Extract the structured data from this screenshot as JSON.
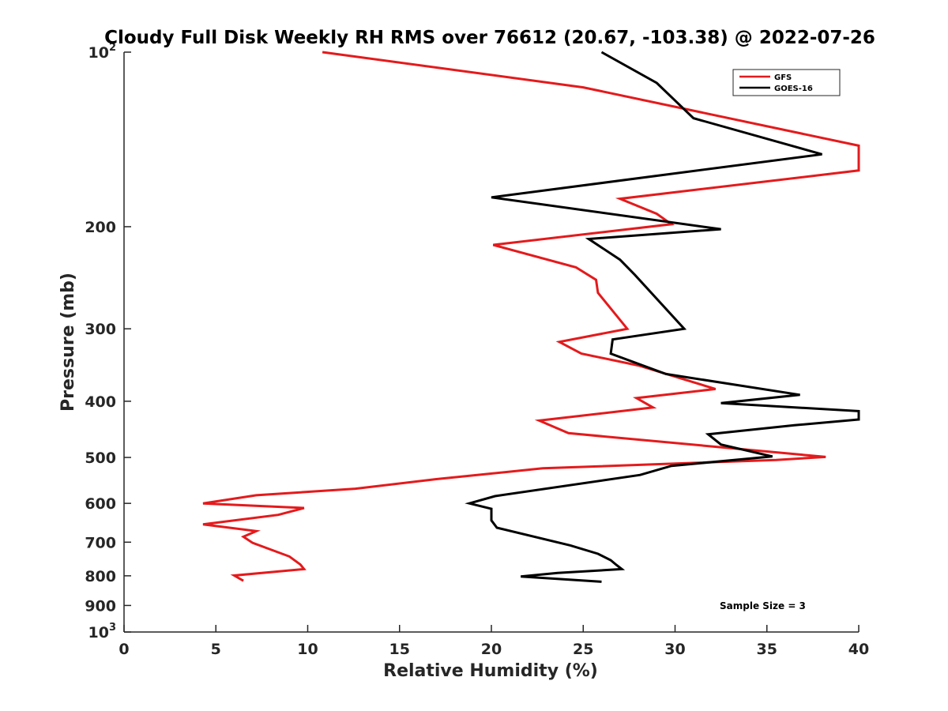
{
  "chart_data": {
    "type": "line",
    "title": "Cloudy Full Disk Weekly RH RMS over 76612 (20.67, -103.38) @ 2022-07-26",
    "xlabel": "Relative Humidity (%)",
    "ylabel": "Pressure (mb)",
    "xlim": [
      0,
      40
    ],
    "ylim": [
      100,
      1000
    ],
    "yscale": "log",
    "y_reversed": true,
    "x_ticks": [
      0,
      5,
      10,
      15,
      20,
      25,
      30,
      35,
      40
    ],
    "y_ticks": [
      {
        "value": 100,
        "base": "10",
        "exp": "2"
      },
      {
        "value": 200,
        "label": "200"
      },
      {
        "value": 300,
        "label": "300"
      },
      {
        "value": 400,
        "label": "400"
      },
      {
        "value": 500,
        "label": "500"
      },
      {
        "value": 600,
        "label": "600"
      },
      {
        "value": 700,
        "label": "700"
      },
      {
        "value": 800,
        "label": "800"
      },
      {
        "value": 900,
        "label": "900"
      },
      {
        "value": 1000,
        "base": "10",
        "exp": "3"
      }
    ],
    "legend_position": "top-right",
    "series": [
      {
        "name": "GFS",
        "color": "#e41a1c",
        "points": [
          [
            10.8,
            100
          ],
          [
            25,
            115
          ],
          [
            40,
            145
          ],
          [
            40,
            160
          ],
          [
            27,
            179
          ],
          [
            29,
            190
          ],
          [
            29.8,
            198
          ],
          [
            20.1,
            215
          ],
          [
            24.6,
            235
          ],
          [
            25.7,
            247
          ],
          [
            25.8,
            260
          ],
          [
            27.4,
            300
          ],
          [
            23.7,
            316
          ],
          [
            24.9,
            331
          ],
          [
            28,
            347
          ],
          [
            32.2,
            381
          ],
          [
            27.9,
            395
          ],
          [
            28.8,
            410
          ],
          [
            22.6,
            432
          ],
          [
            24.2,
            454
          ],
          [
            38.2,
            499
          ],
          [
            35.5,
            505
          ],
          [
            22.8,
            522
          ],
          [
            17,
            545
          ],
          [
            12.6,
            566
          ],
          [
            7.2,
            581
          ],
          [
            4.3,
            600
          ],
          [
            9.8,
            611
          ],
          [
            8.4,
            628
          ],
          [
            4.3,
            652
          ],
          [
            7.2,
            670
          ],
          [
            6.5,
            685
          ],
          [
            7,
            702
          ],
          [
            9,
            741
          ],
          [
            9.6,
            765
          ],
          [
            9.8,
            779
          ],
          [
            6,
            799
          ],
          [
            6.5,
            816
          ]
        ]
      },
      {
        "name": "GOES-16",
        "color": "#000000",
        "points": [
          [
            26,
            100
          ],
          [
            29,
            113
          ],
          [
            31,
            130
          ],
          [
            38,
            150
          ],
          [
            20,
            178
          ],
          [
            32.5,
            202
          ],
          [
            25.3,
            210
          ],
          [
            27,
            228
          ],
          [
            27.8,
            242
          ],
          [
            30.5,
            300
          ],
          [
            26.6,
            313
          ],
          [
            26.5,
            331
          ],
          [
            29.5,
            359
          ],
          [
            36.8,
            390
          ],
          [
            32.5,
            403
          ],
          [
            40,
            416
          ],
          [
            40,
            430
          ],
          [
            36.5,
            440
          ],
          [
            31.8,
            456
          ],
          [
            32.5,
            475
          ],
          [
            35.3,
            498
          ],
          [
            29.8,
            517
          ],
          [
            28.1,
            536
          ],
          [
            20.2,
            583
          ],
          [
            18.8,
            600
          ],
          [
            20,
            613
          ],
          [
            20,
            642
          ],
          [
            20.3,
            661
          ],
          [
            24.3,
            709
          ],
          [
            25.8,
            733
          ],
          [
            26.5,
            752
          ],
          [
            26.8,
            766
          ],
          [
            27.1,
            779
          ],
          [
            23.6,
            791
          ],
          [
            21.6,
            802
          ],
          [
            26,
            819
          ]
        ]
      }
    ],
    "annotations": [
      "Sample Size = 3"
    ]
  }
}
